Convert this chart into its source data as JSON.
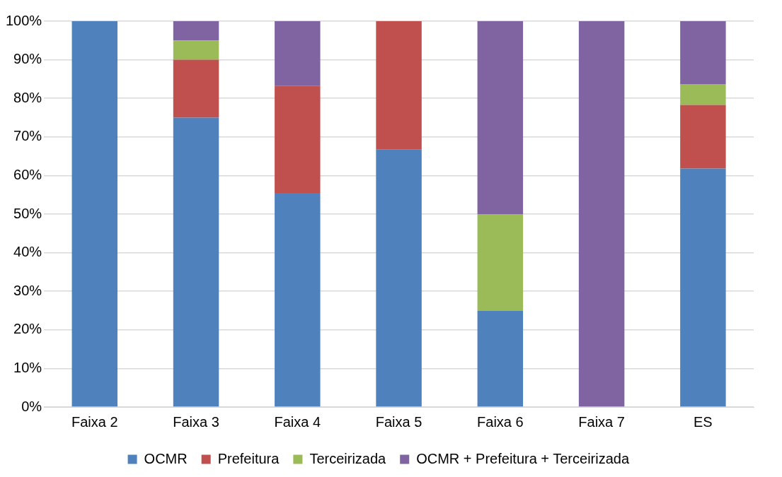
{
  "chart_data": {
    "type": "bar",
    "stacked": true,
    "categories": [
      "Faixa 2",
      "Faixa 3",
      "Faixa 4",
      "Faixa 5",
      "Faixa 6",
      "Faixa 7",
      "ES"
    ],
    "series": [
      {
        "name": "OCMR",
        "color": "#4f81bd",
        "values": [
          100,
          75,
          55.5,
          66.7,
          25,
          0,
          61.8
        ]
      },
      {
        "name": "Prefeitura",
        "color": "#c0504d",
        "values": [
          0,
          15,
          27.8,
          33.3,
          0,
          0,
          16.5
        ]
      },
      {
        "name": "Terceirizada",
        "color": "#9bbb59",
        "values": [
          0,
          5,
          0,
          0,
          25,
          0,
          5.4
        ]
      },
      {
        "name": "OCMR + Prefeitura + Terceirizada",
        "color": "#8064a2",
        "values": [
          0,
          5,
          16.7,
          0,
          50,
          100,
          16.3
        ]
      }
    ],
    "ylim": [
      0,
      100
    ],
    "yticks": [
      {
        "value": 0,
        "label": "0%"
      },
      {
        "value": 10,
        "label": "10%"
      },
      {
        "value": 20,
        "label": "20%"
      },
      {
        "value": 30,
        "label": "30%"
      },
      {
        "value": 40,
        "label": "40%"
      },
      {
        "value": 50,
        "label": "50%"
      },
      {
        "value": 60,
        "label": "60%"
      },
      {
        "value": 70,
        "label": "70%"
      },
      {
        "value": 80,
        "label": "80%"
      },
      {
        "value": 90,
        "label": "90%"
      },
      {
        "value": 100,
        "label": "100%"
      }
    ],
    "grid": "y",
    "legend": "bottom"
  }
}
